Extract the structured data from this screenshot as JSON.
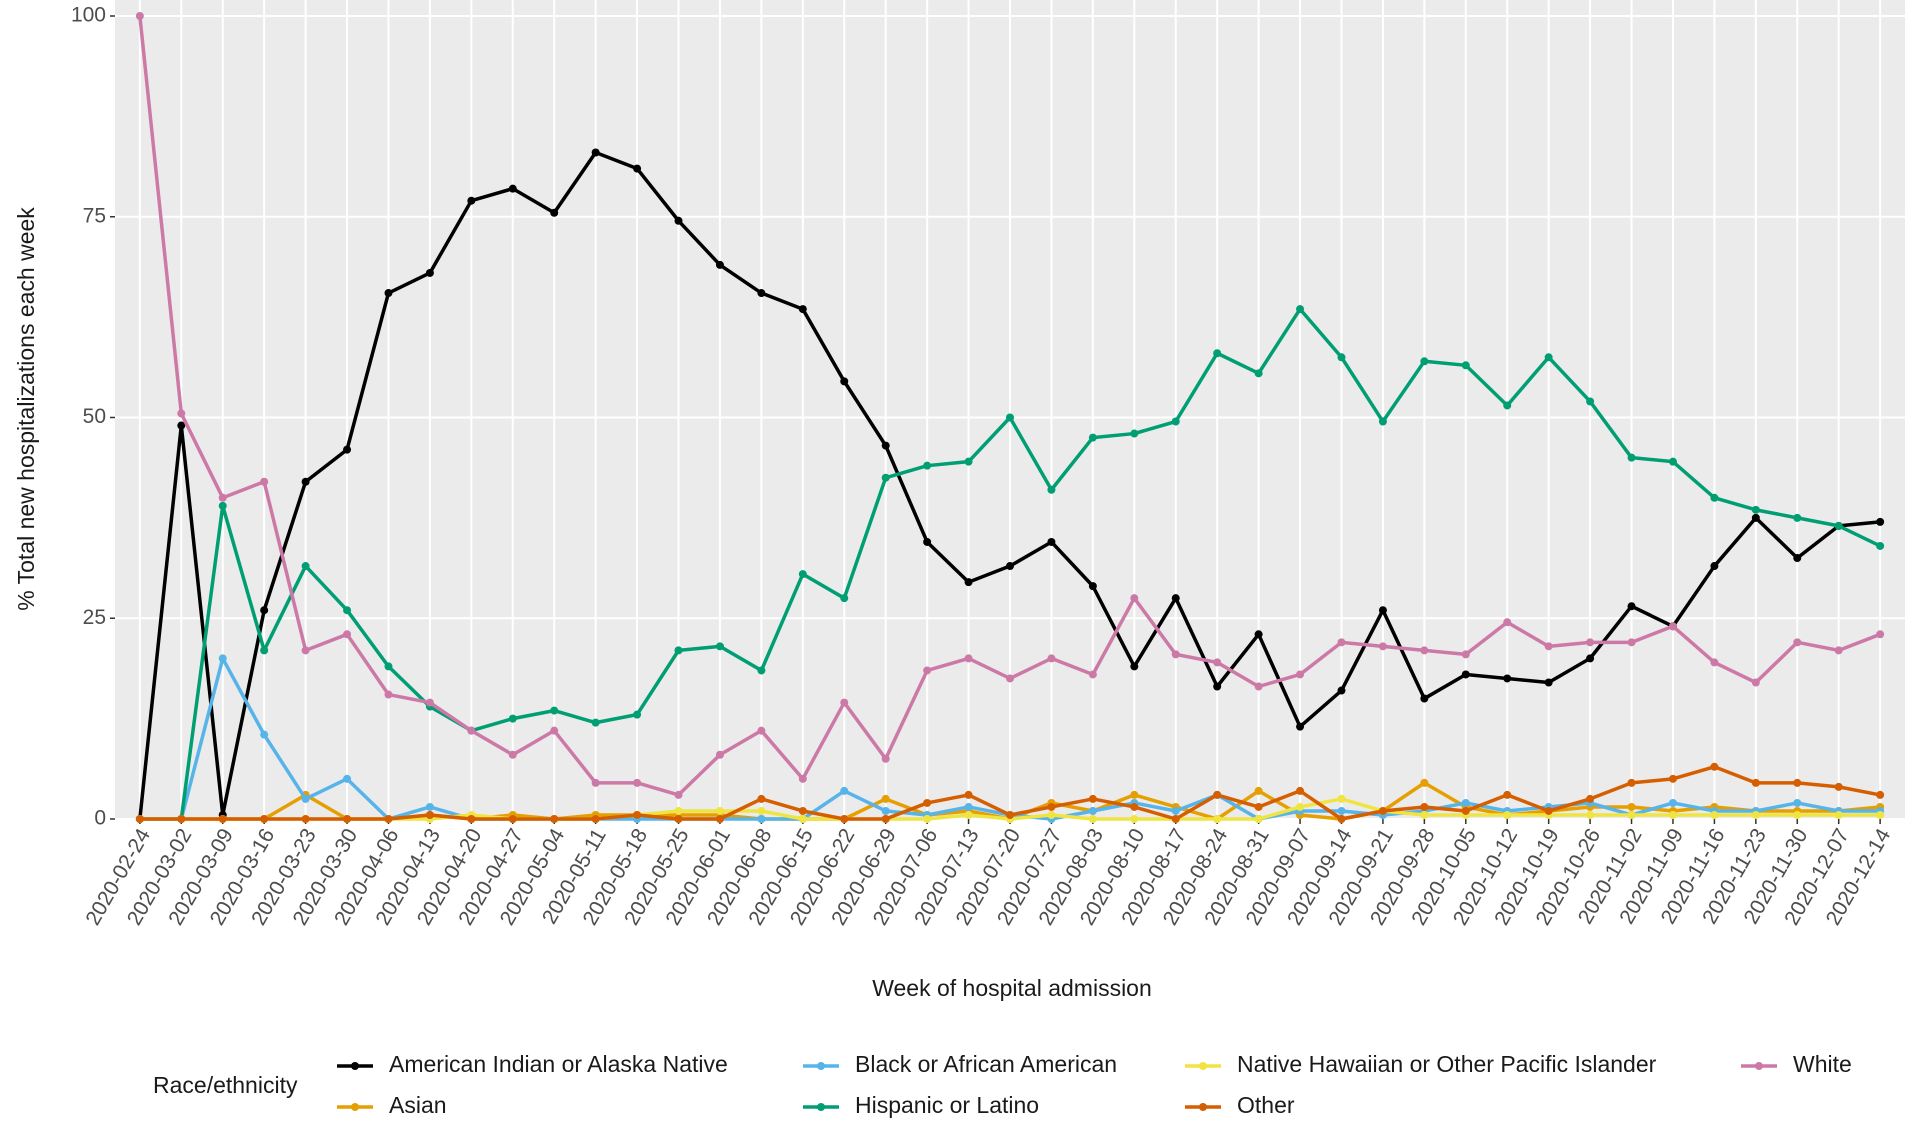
{
  "chart_data": {
    "type": "line",
    "x_label": "Week of hospital admission",
    "y_label": "% Total new hospitalizations each week",
    "legend_title": "Race/ethnicity",
    "legend_position": "bottom",
    "grid": true,
    "categories": [
      "2020-02-24",
      "2020-03-02",
      "2020-03-09",
      "2020-03-16",
      "2020-03-23",
      "2020-03-30",
      "2020-04-06",
      "2020-04-13",
      "2020-04-20",
      "2020-04-27",
      "2020-05-04",
      "2020-05-11",
      "2020-05-18",
      "2020-05-25",
      "2020-06-01",
      "2020-06-08",
      "2020-06-15",
      "2020-06-22",
      "2020-06-29",
      "2020-07-06",
      "2020-07-13",
      "2020-07-20",
      "2020-07-27",
      "2020-08-03",
      "2020-08-10",
      "2020-08-17",
      "2020-08-24",
      "2020-08-31",
      "2020-09-07",
      "2020-09-14",
      "2020-09-21",
      "2020-09-28",
      "2020-10-05",
      "2020-10-12",
      "2020-10-19",
      "2020-10-26",
      "2020-11-02",
      "2020-11-09",
      "2020-11-16",
      "2020-11-23",
      "2020-11-30",
      "2020-12-07",
      "2020-12-14"
    ],
    "ylim": [
      0,
      100
    ],
    "yticks": [
      0,
      25,
      50,
      75,
      100
    ],
    "series": [
      {
        "name": "American Indian or Alaska Native",
        "color": "#000000",
        "values": [
          0,
          49,
          0.5,
          26,
          42,
          46,
          65.5,
          68,
          77,
          78.5,
          75.5,
          83,
          81,
          74.5,
          69,
          65.5,
          63.5,
          54.5,
          46.5,
          34.5,
          29.5,
          31.5,
          34.5,
          29,
          19,
          27.5,
          16.5,
          23,
          11.5,
          16,
          26,
          15,
          18,
          17.5,
          17,
          20,
          26.5,
          24,
          31.5,
          37.5,
          32.5,
          36.5,
          37
        ]
      },
      {
        "name": "Asian",
        "color": "#E69F00",
        "values": [
          0,
          0,
          0,
          0,
          3,
          0,
          0,
          0.5,
          0,
          0.5,
          0,
          0.5,
          0.5,
          0.5,
          0.5,
          0,
          0,
          0,
          2.5,
          0.5,
          1,
          0,
          2,
          1,
          3,
          1.5,
          0,
          3.5,
          0.5,
          0,
          1,
          4.5,
          1.5,
          0.5,
          1,
          1.5,
          1.5,
          1,
          1.5,
          1,
          1,
          1,
          1.5
        ]
      },
      {
        "name": "Black or African American",
        "color": "#56B4E9",
        "values": [
          0,
          0,
          20,
          10.5,
          2.5,
          5,
          0,
          1.5,
          0,
          0,
          0,
          0,
          0,
          0,
          0,
          0,
          0,
          3.5,
          1,
          0.5,
          1.5,
          0.5,
          0,
          1,
          2,
          1,
          3,
          0,
          1,
          1,
          0.5,
          1,
          2,
          1,
          1.5,
          2,
          0.5,
          2,
          1,
          1,
          2,
          1,
          1
        ]
      },
      {
        "name": "Hispanic or Latino",
        "color": "#009E73",
        "values": [
          0,
          0,
          39,
          21,
          31.5,
          26,
          19,
          14,
          11,
          12.5,
          13.5,
          12,
          13,
          21,
          21.5,
          18.5,
          30.5,
          27.5,
          42.5,
          44,
          44.5,
          50,
          41,
          47.5,
          48,
          49.5,
          58,
          55.5,
          63.5,
          57.5,
          49.5,
          57,
          56.5,
          51.5,
          57.5,
          52,
          45,
          44.5,
          40,
          38.5,
          37.5,
          36.5,
          34
        ]
      },
      {
        "name": "Native Hawaiian or Other Pacific Islander",
        "color": "#F0E442",
        "values": [
          0,
          0,
          0,
          0,
          0,
          0,
          0,
          0,
          0.5,
          0,
          0,
          0,
          0.5,
          1,
          1,
          1,
          0,
          0,
          0,
          0,
          0.5,
          0,
          0.5,
          0,
          0,
          0,
          0,
          0,
          1.5,
          2.5,
          1,
          0.5,
          0.5,
          0.5,
          0.5,
          0.5,
          0.5,
          0.5,
          0.5,
          0.5,
          0.5,
          0.5,
          0.5
        ]
      },
      {
        "name": "Other",
        "color": "#D55E00",
        "values": [
          0,
          0,
          0,
          0,
          0,
          0,
          0,
          0.5,
          0,
          0,
          0,
          0,
          0.5,
          0,
          0,
          2.5,
          1,
          0,
          0,
          2,
          3,
          0.5,
          1.5,
          2.5,
          1.5,
          0,
          3,
          1.5,
          3.5,
          0,
          1,
          1.5,
          1,
          3,
          1,
          2.5,
          4.5,
          5,
          6.5,
          4.5,
          4.5,
          4,
          3
        ]
      },
      {
        "name": "White",
        "color": "#CC79A7",
        "values": [
          100,
          50.5,
          40,
          42,
          21,
          23,
          15.5,
          14.5,
          11,
          8,
          11,
          4.5,
          4.5,
          3,
          8,
          11,
          5,
          14.5,
          7.5,
          18.5,
          20,
          17.5,
          20,
          18,
          27.5,
          20.5,
          19.5,
          16.5,
          18,
          22,
          21.5,
          21,
          20.5,
          24.5,
          21.5,
          22,
          22,
          24,
          19.5,
          17,
          22,
          21,
          23
        ]
      }
    ]
  }
}
